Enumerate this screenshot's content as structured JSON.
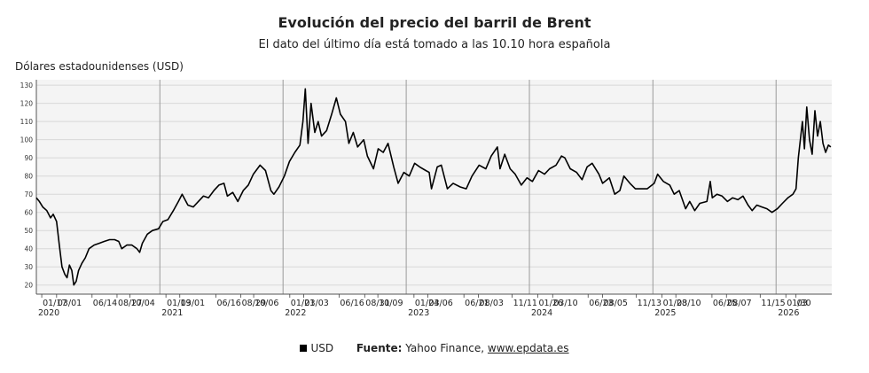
{
  "chart_data": {
    "type": "line",
    "title": "Evolución del precio del barril de Brent",
    "subtitle": "El dato del último día está tomado a las 10.10 hora española",
    "ylabel": "Dólares estadounidenses (USD)",
    "ylim": [
      15,
      133
    ],
    "yticks": [
      20,
      30,
      40,
      50,
      60,
      70,
      80,
      90,
      100,
      110,
      120,
      130
    ],
    "grid": true,
    "x_range": [
      "2020-01-01",
      "2026-06-15"
    ],
    "xtick_labels": [
      {
        "date": "2020-01-17",
        "label": "01/17"
      },
      {
        "date": "2020-03-01",
        "label": "03/01"
      },
      {
        "date": "2020-06-14",
        "label": "06/14"
      },
      {
        "date": "2020-08-27",
        "label": "08/27"
      },
      {
        "date": "2020-10-04",
        "label": "10/04"
      },
      {
        "date": "2021-01-19",
        "label": "01/19"
      },
      {
        "date": "2021-03-01",
        "label": "03/01"
      },
      {
        "date": "2021-06-16",
        "label": "06/16"
      },
      {
        "date": "2021-08-29",
        "label": "08/29"
      },
      {
        "date": "2021-10-06",
        "label": "10/06"
      },
      {
        "date": "2022-01-21",
        "label": "01/21"
      },
      {
        "date": "2022-03-03",
        "label": "03/03"
      },
      {
        "date": "2022-06-16",
        "label": "06/16"
      },
      {
        "date": "2022-08-31",
        "label": "08/31"
      },
      {
        "date": "2022-10-09",
        "label": "10/09"
      },
      {
        "date": "2023-01-24",
        "label": "01/24"
      },
      {
        "date": "2023-03-06",
        "label": "03/06"
      },
      {
        "date": "2023-06-21",
        "label": "06/21"
      },
      {
        "date": "2023-08-03",
        "label": "08/03"
      },
      {
        "date": "2023-11-11",
        "label": "11/11"
      },
      {
        "date": "2024-01-26",
        "label": "01/26"
      },
      {
        "date": "2024-03-10",
        "label": "03/10"
      },
      {
        "date": "2024-06-23",
        "label": "06/23"
      },
      {
        "date": "2024-08-05",
        "label": "08/05"
      },
      {
        "date": "2024-11-13",
        "label": "11/13"
      },
      {
        "date": "2025-01-28",
        "label": "01/28"
      },
      {
        "date": "2025-03-10",
        "label": "03/10"
      },
      {
        "date": "2025-06-25",
        "label": "06/25"
      },
      {
        "date": "2025-08-07",
        "label": "08/07"
      },
      {
        "date": "2025-11-15",
        "label": "11/15"
      },
      {
        "date": "2026-01-30",
        "label": "01/30"
      },
      {
        "date": "2026-03-01",
        "label": "03"
      }
    ],
    "year_labels": [
      {
        "date": "2020-01-01",
        "label": "2020"
      },
      {
        "date": "2021-01-01",
        "label": "2021"
      },
      {
        "date": "2022-01-01",
        "label": "2022"
      },
      {
        "date": "2023-01-01",
        "label": "2023"
      },
      {
        "date": "2024-01-01",
        "label": "2024"
      },
      {
        "date": "2025-01-01",
        "label": "2025"
      },
      {
        "date": "2026-01-01",
        "label": "2026"
      }
    ],
    "series": [
      {
        "name": "USD",
        "color": "#000000",
        "points": [
          [
            "2020-01-01",
            68
          ],
          [
            "2020-01-10",
            66
          ],
          [
            "2020-01-20",
            63
          ],
          [
            "2020-02-01",
            61
          ],
          [
            "2020-02-12",
            57
          ],
          [
            "2020-02-20",
            59
          ],
          [
            "2020-03-01",
            55
          ],
          [
            "2020-03-09",
            42
          ],
          [
            "2020-03-17",
            30
          ],
          [
            "2020-03-25",
            26
          ],
          [
            "2020-04-01",
            24
          ],
          [
            "2020-04-08",
            31
          ],
          [
            "2020-04-15",
            28
          ],
          [
            "2020-04-21",
            20
          ],
          [
            "2020-04-28",
            22
          ],
          [
            "2020-05-05",
            28
          ],
          [
            "2020-05-15",
            32
          ],
          [
            "2020-05-25",
            35
          ],
          [
            "2020-06-05",
            40
          ],
          [
            "2020-06-20",
            42
          ],
          [
            "2020-07-05",
            43
          ],
          [
            "2020-07-20",
            44
          ],
          [
            "2020-08-05",
            45
          ],
          [
            "2020-08-20",
            45
          ],
          [
            "2020-09-01",
            44
          ],
          [
            "2020-09-10",
            40
          ],
          [
            "2020-09-25",
            42
          ],
          [
            "2020-10-10",
            42
          ],
          [
            "2020-10-25",
            40
          ],
          [
            "2020-11-02",
            38
          ],
          [
            "2020-11-10",
            43
          ],
          [
            "2020-11-25",
            48
          ],
          [
            "2020-12-10",
            50
          ],
          [
            "2020-12-28",
            51
          ],
          [
            "2021-01-10",
            55
          ],
          [
            "2021-01-25",
            56
          ],
          [
            "2021-02-10",
            61
          ],
          [
            "2021-02-25",
            66
          ],
          [
            "2021-03-08",
            70
          ],
          [
            "2021-03-25",
            64
          ],
          [
            "2021-04-10",
            63
          ],
          [
            "2021-04-25",
            66
          ],
          [
            "2021-05-10",
            69
          ],
          [
            "2021-05-25",
            68
          ],
          [
            "2021-06-10",
            72
          ],
          [
            "2021-06-25",
            75
          ],
          [
            "2021-07-10",
            76
          ],
          [
            "2021-07-20",
            69
          ],
          [
            "2021-08-05",
            71
          ],
          [
            "2021-08-20",
            66
          ],
          [
            "2021-09-05",
            72
          ],
          [
            "2021-09-20",
            75
          ],
          [
            "2021-10-05",
            81
          ],
          [
            "2021-10-25",
            86
          ],
          [
            "2021-11-10",
            83
          ],
          [
            "2021-11-26",
            72
          ],
          [
            "2021-12-05",
            70
          ],
          [
            "2021-12-20",
            74
          ],
          [
            "2022-01-05",
            80
          ],
          [
            "2022-01-20",
            88
          ],
          [
            "2022-02-05",
            93
          ],
          [
            "2022-02-20",
            97
          ],
          [
            "2022-03-01",
            110
          ],
          [
            "2022-03-08",
            128
          ],
          [
            "2022-03-16",
            98
          ],
          [
            "2022-03-25",
            120
          ],
          [
            "2022-04-05",
            104
          ],
          [
            "2022-04-15",
            110
          ],
          [
            "2022-04-25",
            102
          ],
          [
            "2022-05-10",
            105
          ],
          [
            "2022-05-25",
            114
          ],
          [
            "2022-06-08",
            123
          ],
          [
            "2022-06-20",
            114
          ],
          [
            "2022-07-05",
            110
          ],
          [
            "2022-07-15",
            98
          ],
          [
            "2022-07-28",
            104
          ],
          [
            "2022-08-10",
            96
          ],
          [
            "2022-08-28",
            100
          ],
          [
            "2022-09-08",
            91
          ],
          [
            "2022-09-26",
            84
          ],
          [
            "2022-10-10",
            95
          ],
          [
            "2022-10-25",
            93
          ],
          [
            "2022-11-08",
            98
          ],
          [
            "2022-11-25",
            85
          ],
          [
            "2022-12-08",
            76
          ],
          [
            "2022-12-25",
            82
          ],
          [
            "2023-01-10",
            80
          ],
          [
            "2023-01-26",
            87
          ],
          [
            "2023-02-10",
            85
          ],
          [
            "2023-02-28",
            83
          ],
          [
            "2023-03-10",
            82
          ],
          [
            "2023-03-17",
            73
          ],
          [
            "2023-04-03",
            85
          ],
          [
            "2023-04-15",
            86
          ],
          [
            "2023-05-03",
            73
          ],
          [
            "2023-05-20",
            76
          ],
          [
            "2023-06-10",
            74
          ],
          [
            "2023-06-28",
            73
          ],
          [
            "2023-07-15",
            80
          ],
          [
            "2023-08-05",
            86
          ],
          [
            "2023-08-25",
            84
          ],
          [
            "2023-09-10",
            91
          ],
          [
            "2023-09-28",
            96
          ],
          [
            "2023-10-06",
            84
          ],
          [
            "2023-10-20",
            92
          ],
          [
            "2023-11-05",
            84
          ],
          [
            "2023-11-20",
            81
          ],
          [
            "2023-12-08",
            75
          ],
          [
            "2023-12-25",
            79
          ],
          [
            "2024-01-10",
            77
          ],
          [
            "2024-01-28",
            83
          ],
          [
            "2024-02-15",
            81
          ],
          [
            "2024-03-01",
            84
          ],
          [
            "2024-03-20",
            86
          ],
          [
            "2024-04-05",
            91
          ],
          [
            "2024-04-15",
            90
          ],
          [
            "2024-05-01",
            84
          ],
          [
            "2024-05-20",
            82
          ],
          [
            "2024-06-05",
            78
          ],
          [
            "2024-06-20",
            85
          ],
          [
            "2024-07-05",
            87
          ],
          [
            "2024-07-25",
            81
          ],
          [
            "2024-08-05",
            76
          ],
          [
            "2024-08-25",
            79
          ],
          [
            "2024-09-10",
            70
          ],
          [
            "2024-09-25",
            72
          ],
          [
            "2024-10-07",
            80
          ],
          [
            "2024-10-25",
            76
          ],
          [
            "2024-11-10",
            73
          ],
          [
            "2024-11-28",
            73
          ],
          [
            "2024-12-15",
            73
          ],
          [
            "2025-01-05",
            76
          ],
          [
            "2025-01-15",
            81
          ],
          [
            "2025-02-01",
            77
          ],
          [
            "2025-02-20",
            75
          ],
          [
            "2025-03-05",
            70
          ],
          [
            "2025-03-20",
            72
          ],
          [
            "2025-04-08",
            62
          ],
          [
            "2025-04-20",
            66
          ],
          [
            "2025-05-05",
            61
          ],
          [
            "2025-05-20",
            65
          ],
          [
            "2025-06-10",
            66
          ],
          [
            "2025-06-20",
            77
          ],
          [
            "2025-06-26",
            68
          ],
          [
            "2025-07-10",
            70
          ],
          [
            "2025-07-25",
            69
          ],
          [
            "2025-08-10",
            66
          ],
          [
            "2025-08-25",
            68
          ],
          [
            "2025-09-10",
            67
          ],
          [
            "2025-09-25",
            69
          ],
          [
            "2025-10-10",
            64
          ],
          [
            "2025-10-22",
            61
          ],
          [
            "2025-11-05",
            64
          ],
          [
            "2025-11-20",
            63
          ],
          [
            "2025-12-05",
            62
          ],
          [
            "2025-12-20",
            60
          ],
          [
            "2026-01-05",
            62
          ],
          [
            "2026-01-20",
            65
          ],
          [
            "2026-02-05",
            68
          ],
          [
            "2026-02-20",
            70
          ],
          [
            "2026-03-01",
            73
          ],
          [
            "2026-03-08",
            90
          ],
          [
            "2026-03-14",
            100
          ],
          [
            "2026-03-20",
            110
          ],
          [
            "2026-03-26",
            95
          ],
          [
            "2026-04-02",
            118
          ],
          [
            "2026-04-10",
            100
          ],
          [
            "2026-04-18",
            92
          ],
          [
            "2026-04-26",
            116
          ],
          [
            "2026-05-04",
            102
          ],
          [
            "2026-05-12",
            110
          ],
          [
            "2026-05-20",
            98
          ],
          [
            "2026-05-28",
            93
          ],
          [
            "2026-06-05",
            97
          ],
          [
            "2026-06-12",
            96
          ]
        ]
      }
    ]
  },
  "legend": {
    "series_label": "USD",
    "source_label": "Fuente:",
    "source_text": "Yahoo Finance,",
    "source_link": "www.epdata.es"
  }
}
